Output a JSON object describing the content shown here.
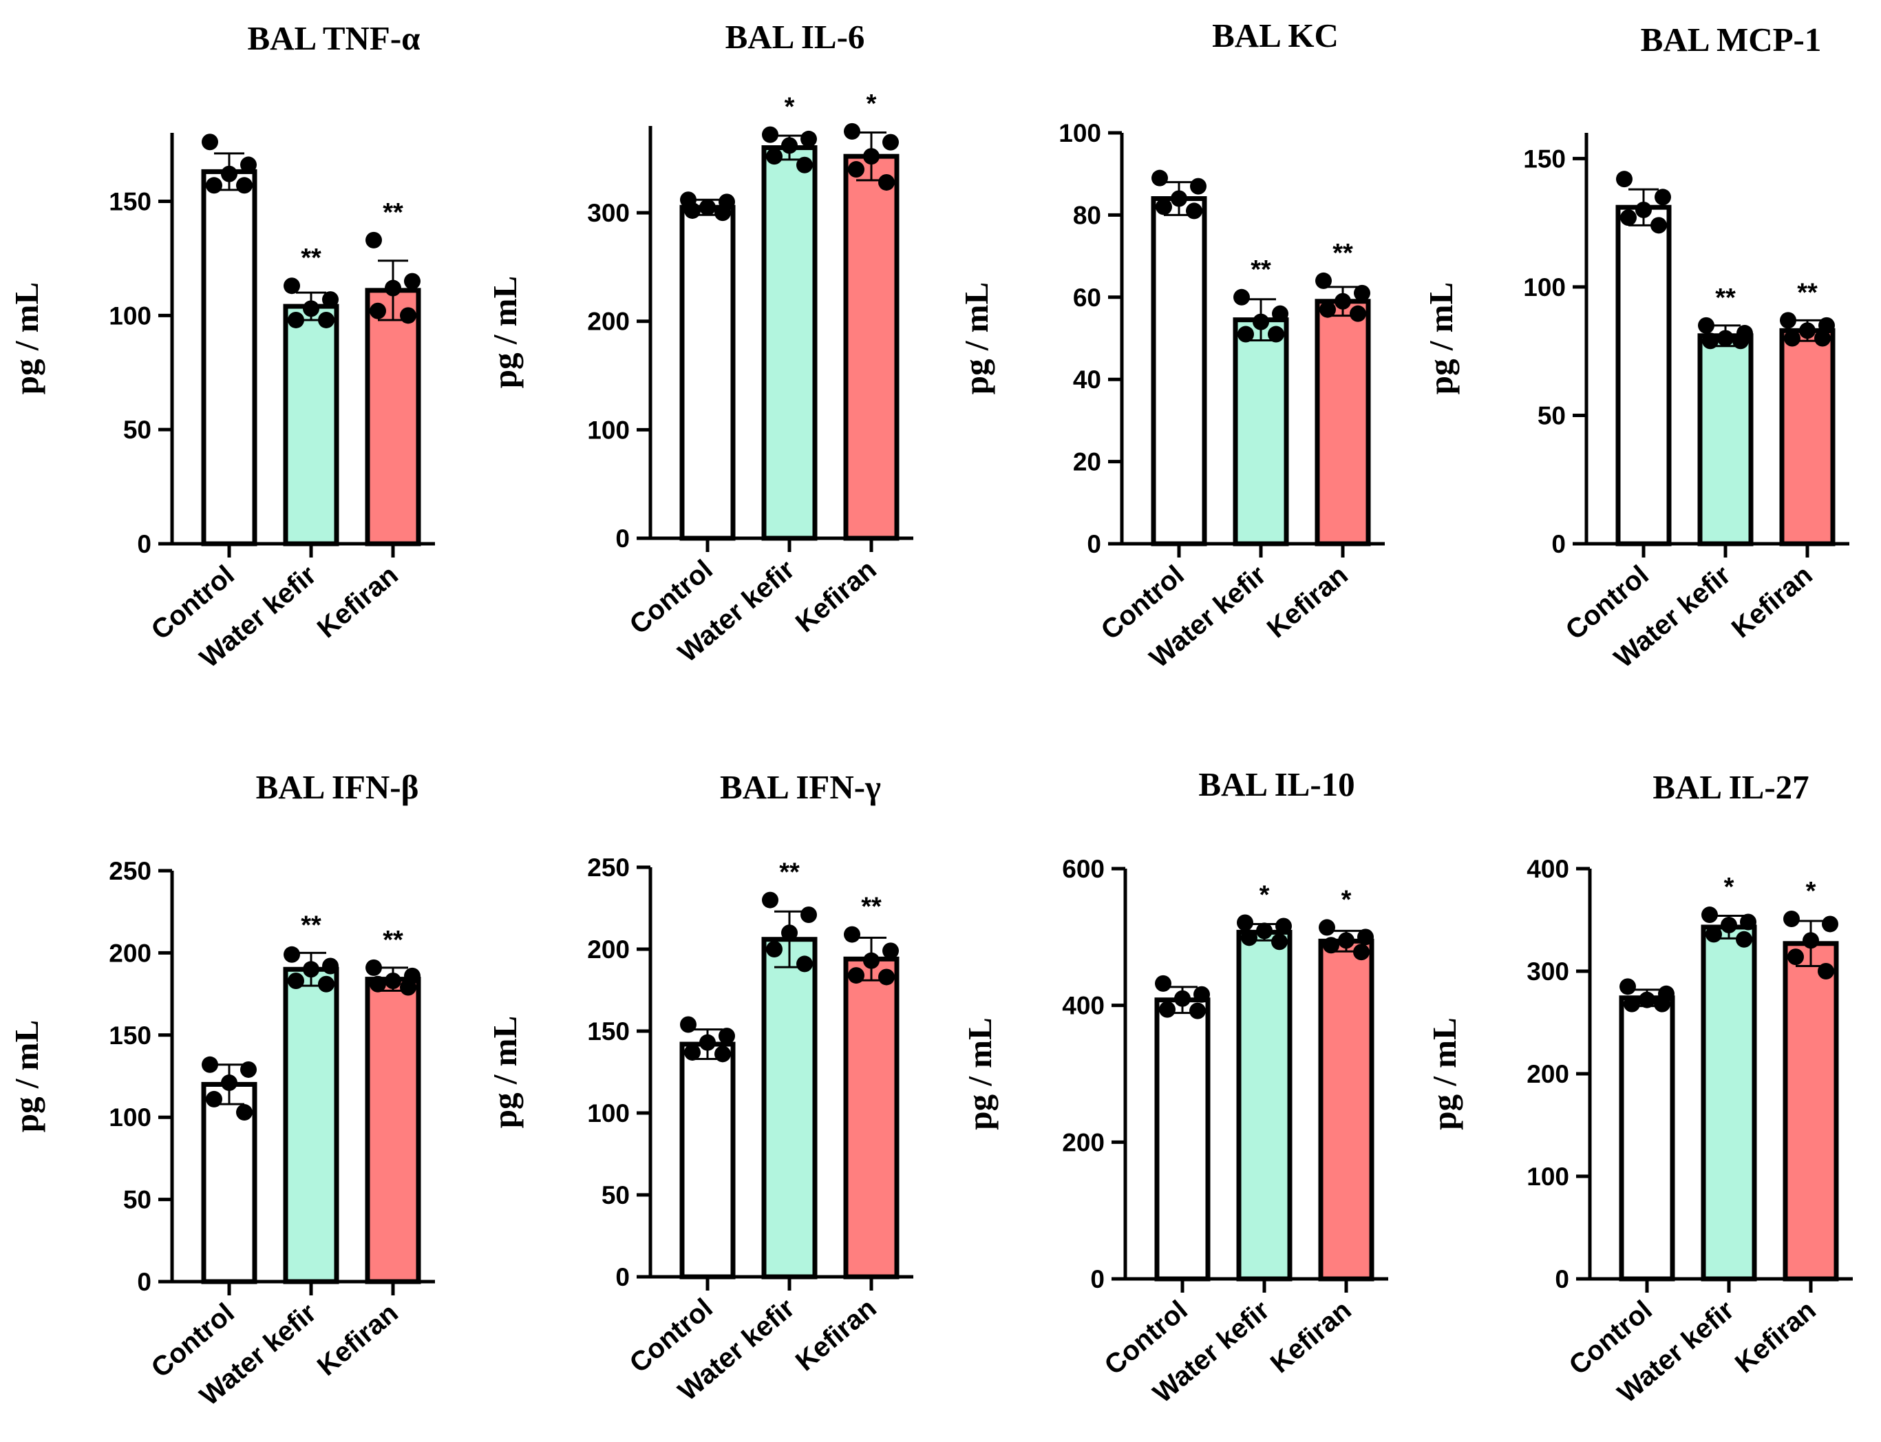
{
  "figure": {
    "bar_colors": [
      "#ffffff",
      "#b2f5de",
      "#ff7f7f"
    ],
    "edge_color": "#000000"
  },
  "chart_data": [
    {
      "type": "bar",
      "title": "BAL TNF-α",
      "ylabel": "pg / mL",
      "categories": [
        "Control",
        "Water kefir",
        "Kefiran"
      ],
      "values": [
        163,
        104,
        111
      ],
      "errors": [
        8,
        6,
        13
      ],
      "points": [
        [
          176,
          166,
          162,
          157,
          157
        ],
        [
          113,
          107,
          103,
          98,
          98
        ],
        [
          133,
          115,
          112,
          102,
          100
        ]
      ],
      "significance": [
        "",
        "**",
        "**"
      ],
      "ylim": [
        0,
        180
      ],
      "yticks": [
        0,
        50,
        100,
        150
      ]
    },
    {
      "type": "bar",
      "title": "BAL IL-6",
      "ylabel": "pg / mL",
      "categories": [
        "Control",
        "Water kefir",
        "Kefiran"
      ],
      "values": [
        305,
        360,
        352
      ],
      "errors": [
        7,
        11,
        22
      ],
      "points": [
        [
          312,
          310,
          305,
          302,
          300
        ],
        [
          372,
          368,
          362,
          352,
          344
        ],
        [
          375,
          365,
          352,
          340,
          328
        ]
      ],
      "significance": [
        "",
        "*",
        "*"
      ],
      "ylim": [
        0,
        380
      ],
      "yticks": [
        0,
        100,
        200,
        300
      ]
    },
    {
      "type": "bar",
      "title": "BAL KC",
      "ylabel": "pg / mL",
      "categories": [
        "Control",
        "Water kefir",
        "Kefiran"
      ],
      "values": [
        84,
        54.5,
        59
      ],
      "errors": [
        4,
        5,
        3.5
      ],
      "points": [
        [
          89,
          87,
          84,
          82,
          81
        ],
        [
          60,
          56,
          54,
          51,
          51
        ],
        [
          64,
          61,
          59,
          57,
          56
        ]
      ],
      "significance": [
        "",
        "**",
        "**"
      ],
      "ylim": [
        0,
        100
      ],
      "yticks": [
        0,
        20,
        40,
        60,
        80,
        100
      ]
    },
    {
      "type": "bar",
      "title": "BAL MCP-1",
      "ylabel": "pg / mL",
      "categories": [
        "Control",
        "Water kefir",
        "Kefiran"
      ],
      "values": [
        131,
        81,
        83
      ],
      "errors": [
        7,
        4,
        4
      ],
      "points": [
        [
          142,
          135,
          130,
          127,
          124
        ],
        [
          85,
          82,
          80,
          79,
          79
        ],
        [
          87,
          85,
          83,
          80,
          80
        ]
      ],
      "significance": [
        "",
        "**",
        "**"
      ],
      "ylim": [
        0,
        160
      ],
      "yticks": [
        0,
        50,
        100,
        150
      ]
    },
    {
      "type": "bar",
      "title": "BAL IFN-β",
      "ylabel": "pg / mL",
      "categories": [
        "Control",
        "Water kefir",
        "Kefiran"
      ],
      "values": [
        120,
        190,
        184
      ],
      "errors": [
        12,
        10,
        7
      ],
      "points": [
        [
          132,
          129,
          121,
          111,
          103
        ],
        [
          199,
          192,
          190,
          183,
          181
        ],
        [
          191,
          186,
          183,
          181,
          179
        ]
      ],
      "significance": [
        "",
        "**",
        "**"
      ],
      "ylim": [
        0,
        250
      ],
      "yticks": [
        0,
        50,
        100,
        150,
        200,
        250
      ]
    },
    {
      "type": "bar",
      "title": "BAL IFN-γ",
      "ylabel": "pg / mL",
      "categories": [
        "Control",
        "Water kefir",
        "Kefiran"
      ],
      "values": [
        142,
        206,
        194
      ],
      "errors": [
        9,
        17,
        13
      ],
      "points": [
        [
          154,
          147,
          143,
          137,
          136
        ],
        [
          230,
          221,
          210,
          200,
          191
        ],
        [
          209,
          199,
          193,
          184,
          183
        ]
      ],
      "significance": [
        "",
        "**",
        "**"
      ],
      "ylim": [
        0,
        250
      ],
      "yticks": [
        0,
        50,
        100,
        150,
        200,
        250
      ]
    },
    {
      "type": "bar",
      "title": "BAL IL-10",
      "ylabel": "pg / mL",
      "categories": [
        "Control",
        "Water kefir",
        "Kefiran"
      ],
      "values": [
        408,
        507,
        494
      ],
      "errors": [
        19,
        12,
        15
      ],
      "points": [
        [
          432,
          416,
          410,
          394,
          392
        ],
        [
          521,
          516,
          509,
          499,
          493
        ],
        [
          514,
          500,
          495,
          488,
          478
        ]
      ],
      "significance": [
        "",
        "*",
        "*"
      ],
      "ylim": [
        0,
        600
      ],
      "yticks": [
        0,
        200,
        400,
        600
      ]
    },
    {
      "type": "bar",
      "title": "BAL IL-27",
      "ylabel": "pg / mL",
      "categories": [
        "Control",
        "Water kefir",
        "Kefiran"
      ],
      "values": [
        274,
        343,
        327
      ],
      "errors": [
        8,
        11,
        22
      ],
      "points": [
        [
          285,
          278,
          272,
          268,
          268
        ],
        [
          355,
          348,
          345,
          336,
          331
        ],
        [
          351,
          346,
          330,
          314,
          300
        ]
      ],
      "significance": [
        "",
        "*",
        "*"
      ],
      "ylim": [
        0,
        400
      ],
      "yticks": [
        0,
        100,
        200,
        300,
        400
      ]
    }
  ]
}
